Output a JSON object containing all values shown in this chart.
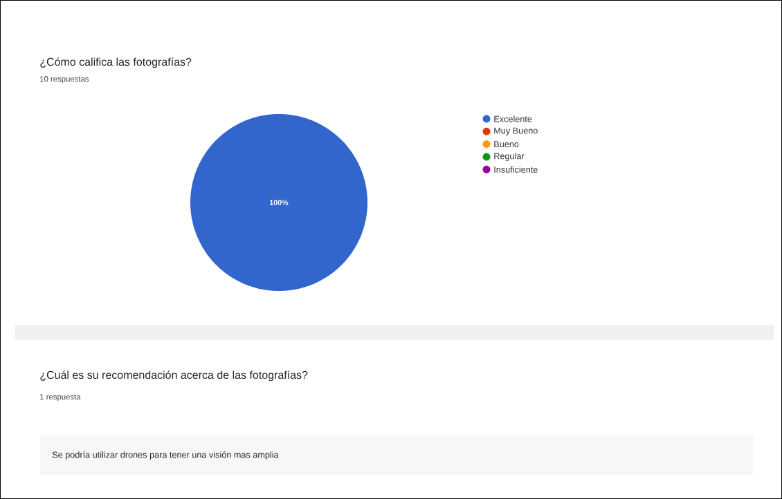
{
  "chart_data": [
    {
      "type": "pie",
      "title": "¿Cómo califica las fotografías?",
      "subtitle": "10 respuestas",
      "categories": [
        "Excelente",
        "Muy Bueno",
        "Bueno",
        "Regular",
        "Insuficiente"
      ],
      "values": [
        100,
        0,
        0,
        0,
        0
      ],
      "colors": [
        "#3366cc",
        "#dc3912",
        "#ff9900",
        "#109618",
        "#990099"
      ],
      "value_labels": [
        "100%",
        null,
        null,
        null,
        null
      ],
      "legend": "right"
    },
    {
      "type": "other",
      "title": "¿Cuál es su recomendación acerca de las fotografías?",
      "subtitle": "1 respuesta",
      "annotations": [
        "Se podría utilizar drones para tener una visión mas amplia"
      ]
    }
  ]
}
